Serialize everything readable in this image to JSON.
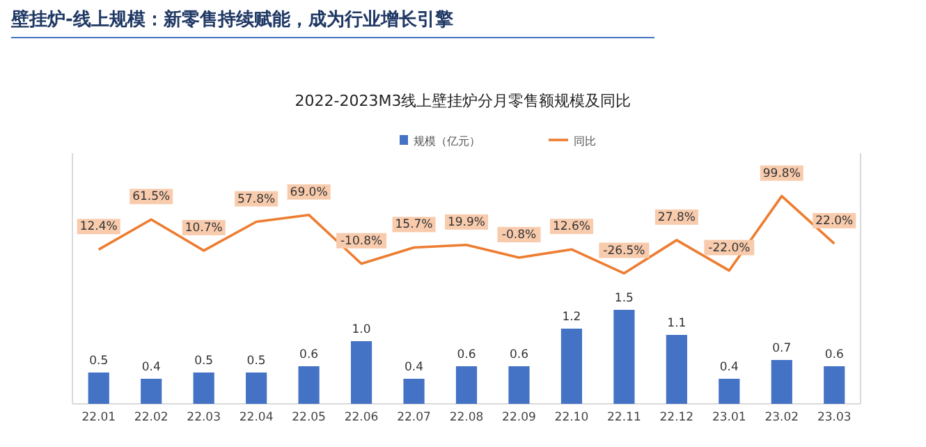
{
  "chart_data": {
    "type": "bar",
    "title": "壁挂炉-线上规模：新零售持续赋能，成为行业增长引擎",
    "subtitle": "2022-2023M3线上壁挂炉分月零售额规模及同比",
    "categories": [
      "22.01",
      "22.02",
      "22.03",
      "22.04",
      "22.05",
      "22.06",
      "22.07",
      "22.08",
      "22.09",
      "22.10",
      "22.11",
      "22.12",
      "23.01",
      "23.02",
      "23.03"
    ],
    "legend": "top",
    "tick_labels": "x",
    "ylim": [
      0,
      4
    ],
    "y2lim": [
      -240,
      170
    ],
    "series": [
      {
        "name": "规模（亿元）",
        "type": "bar",
        "color": "#4472c4",
        "values": [
          0.5,
          0.4,
          0.5,
          0.5,
          0.6,
          1.0,
          0.4,
          0.6,
          0.6,
          1.2,
          1.5,
          1.1,
          0.4,
          0.7,
          0.6
        ],
        "value_labels": [
          "0.5",
          "0.4",
          "0.5",
          "0.5",
          "0.6",
          "1.0",
          "0.4",
          "0.6",
          "0.6",
          "1.2",
          "1.5",
          "1.1",
          "0.4",
          "0.7",
          "0.6"
        ]
      },
      {
        "name": "同比",
        "type": "line",
        "axis": "y2",
        "color": "#ed7d31",
        "values": [
          12.4,
          61.5,
          10.7,
          57.8,
          69.0,
          -10.8,
          15.7,
          19.9,
          -0.8,
          12.6,
          -26.5,
          27.8,
          -22.0,
          99.8,
          22.0
        ],
        "value_labels": [
          "12.4%",
          "61.5%",
          "10.7%",
          "57.8%",
          "69.0%",
          "-10.8%",
          "15.7%",
          "19.9%",
          "-0.8%",
          "12.6%",
          "-26.5%",
          "27.8%",
          "-22.0%",
          "99.8%",
          "22.0%"
        ]
      }
    ]
  }
}
